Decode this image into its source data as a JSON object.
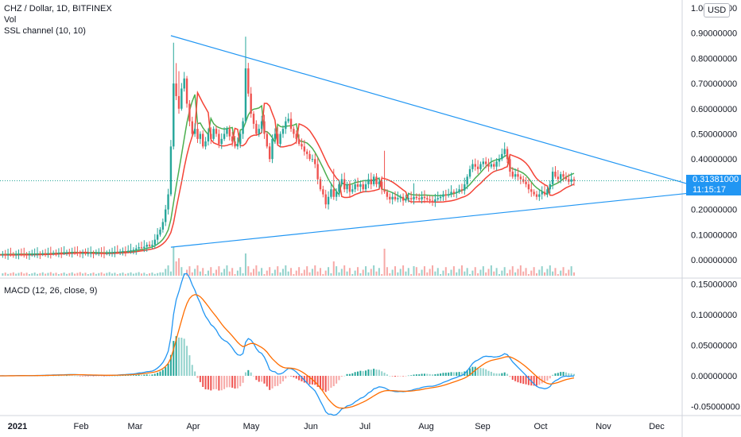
{
  "legend": {
    "symbol": "CHZ / Dollar, 1D, BITFINEX",
    "volume": "Vol",
    "ssl": "SSL channel (10, 10)",
    "macd": "MACD (12, 26, close, 9)"
  },
  "currency_button": "USD",
  "price_tag": {
    "price": "0.31381000",
    "countdown": "11:15:17"
  },
  "colors": {
    "up": "#26a69a",
    "down": "#ef5350",
    "ssl_up": "#4caf50",
    "ssl_down": "#f44336",
    "trendline": "#2196f3",
    "macd_line": "#2196f3",
    "signal_line": "#ff6d00",
    "hist_up": "#26a69a",
    "hist_down": "#ef5350",
    "axis_text": "#131722",
    "grid": "#e0e3eb"
  },
  "price_axis_labels": [
    "1.00000000",
    "0.90000000",
    "0.80000000",
    "0.70000000",
    "0.60000000",
    "0.50000000",
    "0.40000000",
    "0.20000000",
    "0.10000000",
    "0.00000000"
  ],
  "macd_axis_labels": [
    "0.15000000",
    "0.10000000",
    "0.05000000",
    "0.00000000",
    "-0.05000000"
  ],
  "time_axis_labels": [
    "2021",
    "Feb",
    "Mar",
    "Apr",
    "May",
    "Jun",
    "Jul",
    "Aug",
    "Sep",
    "Oct",
    "Nov",
    "Dec"
  ],
  "chart_data": {
    "type": "candlestick",
    "price_range": [
      0,
      1.0
    ],
    "macd_range": [
      -0.065,
      0.16
    ],
    "closes": [
      0.02,
      0.021,
      0.02,
      0.022,
      0.021,
      0.02,
      0.022,
      0.023,
      0.022,
      0.021,
      0.02,
      0.021,
      0.022,
      0.023,
      0.024,
      0.023,
      0.025,
      0.024,
      0.026,
      0.025,
      0.027,
      0.026,
      0.028,
      0.027,
      0.028,
      0.03,
      0.029,
      0.03,
      0.028,
      0.027,
      0.026,
      0.027,
      0.025,
      0.026,
      0.027,
      0.026,
      0.027,
      0.028,
      0.027,
      0.026,
      0.027,
      0.028,
      0.03,
      0.032,
      0.031,
      0.033,
      0.035,
      0.034,
      0.036,
      0.038,
      0.04,
      0.045,
      0.05,
      0.047,
      0.052,
      0.06,
      0.055,
      0.06,
      0.08,
      0.1,
      0.12,
      0.15,
      0.2,
      0.26,
      0.45,
      0.7,
      0.65,
      0.6,
      0.68,
      0.72,
      0.62,
      0.55,
      0.5,
      0.52,
      0.48,
      0.5,
      0.45,
      0.47,
      0.5,
      0.48,
      0.52,
      0.5,
      0.46,
      0.48,
      0.5,
      0.52,
      0.49,
      0.47,
      0.45,
      0.46,
      0.5,
      0.55,
      0.76,
      0.66,
      0.58,
      0.54,
      0.5,
      0.52,
      0.55,
      0.5,
      0.45,
      0.4,
      0.48,
      0.5,
      0.46,
      0.5,
      0.52,
      0.55,
      0.56,
      0.52,
      0.5,
      0.48,
      0.46,
      0.45,
      0.43,
      0.42,
      0.4,
      0.4,
      0.38,
      0.32,
      0.28,
      0.26,
      0.22,
      0.25,
      0.28,
      0.25,
      0.27,
      0.3,
      0.32,
      0.28,
      0.3,
      0.27,
      0.28,
      0.3,
      0.29,
      0.3,
      0.28,
      0.3,
      0.32,
      0.3,
      0.33,
      0.3,
      0.31,
      0.28,
      0.27,
      0.25,
      0.24,
      0.25,
      0.24,
      0.245,
      0.25,
      0.235,
      0.24,
      0.245,
      0.24,
      0.25,
      0.245,
      0.24,
      0.25,
      0.245,
      0.24,
      0.235,
      0.23,
      0.24,
      0.245,
      0.25,
      0.26,
      0.255,
      0.26,
      0.27,
      0.265,
      0.27,
      0.28,
      0.275,
      0.3,
      0.33,
      0.36,
      0.38,
      0.37,
      0.36,
      0.38,
      0.39,
      0.38,
      0.37,
      0.38,
      0.37,
      0.39,
      0.4,
      0.42,
      0.44,
      0.4,
      0.35,
      0.33,
      0.34,
      0.33,
      0.32,
      0.31,
      0.3,
      0.28,
      0.27,
      0.26,
      0.25,
      0.26,
      0.27,
      0.26,
      0.28,
      0.3,
      0.35,
      0.33,
      0.32,
      0.34,
      0.33,
      0.32,
      0.31,
      0.32,
      0.314
    ],
    "volume_spikes": [
      [
        65,
        0.9
      ],
      [
        66,
        0.45
      ],
      [
        67,
        0.55
      ],
      [
        92,
        0.7
      ],
      [
        125,
        0.45
      ],
      [
        144,
        0.85
      ],
      [
        155,
        0.3
      ]
    ],
    "trendlines": [
      {
        "from": {
          "index": 64,
          "price": 0.89
        },
        "to": {
          "index": 263,
          "price": 0.285
        }
      },
      {
        "from": {
          "index": 64,
          "price": 0.05
        },
        "to": {
          "index": 263,
          "price": 0.27
        }
      }
    ],
    "horizontal_line": 0.31381
  }
}
